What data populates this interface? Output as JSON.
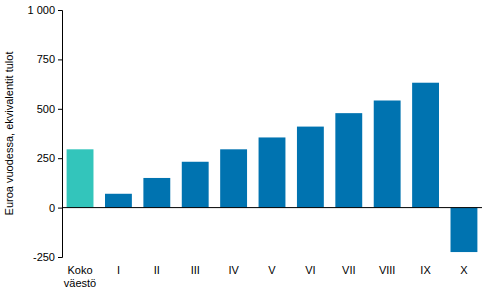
{
  "chart_data": {
    "type": "bar",
    "y_label": "Euroa vuodessa, ekvivalentit tulot",
    "categories": [
      "Koko väestö",
      "I",
      "II",
      "III",
      "IV",
      "V",
      "VI",
      "VII",
      "VIII",
      "IX",
      "X"
    ],
    "values": [
      295,
      70,
      150,
      232,
      295,
      355,
      410,
      478,
      542,
      632,
      -225
    ],
    "colors": [
      "#33c5bb",
      "#0073b0",
      "#0073b0",
      "#0073b0",
      "#0073b0",
      "#0073b0",
      "#0073b0",
      "#0073b0",
      "#0073b0",
      "#0073b0",
      "#0073b0"
    ],
    "ylim": [
      -250,
      1000
    ],
    "yticks": [
      -250,
      0,
      250,
      500,
      750,
      {
        "value": 1000,
        "label": "1 000"
      }
    ],
    "grid": false
  }
}
